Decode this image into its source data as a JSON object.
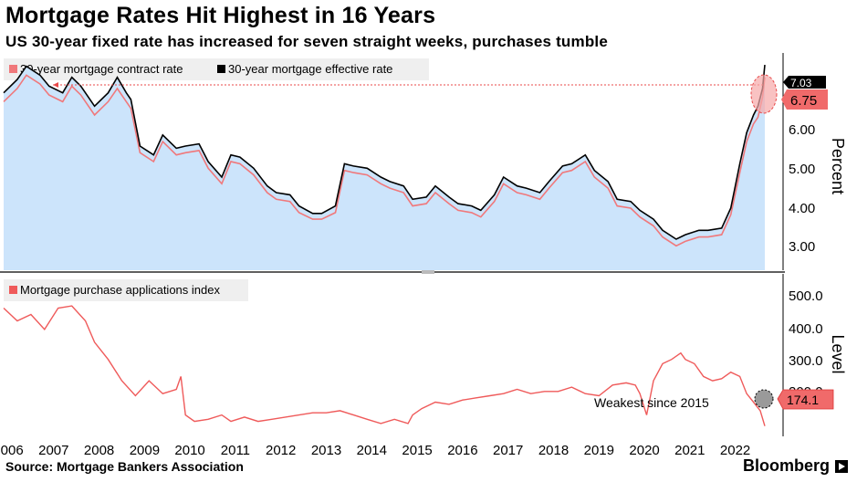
{
  "header": {
    "title": "Mortgage Rates Hit Highest in 16 Years",
    "subtitle": "US 30-year fixed rate has increased for seven straight weeks, purchases tumble"
  },
  "footer": {
    "source": "Source: Mortgage Bankers Association",
    "brand": "Bloomberg"
  },
  "colors": {
    "contract": "#f0787b",
    "effective": "#000000",
    "area": "#cce4fb",
    "index": "#ef5a5a",
    "callout": "#f06a6a"
  },
  "chart_data": [
    {
      "type": "line",
      "ylabel": "Percent",
      "ylim": [
        2.4,
        7.3
      ],
      "yticks": [
        "3.00",
        "4.00",
        "5.00",
        "6.00"
      ],
      "grid": false,
      "legend_position": "top-left",
      "x_range": [
        2006.0,
        2022.75
      ],
      "x_tick_labels": [
        "2006",
        "2007",
        "2008",
        "2009",
        "2010",
        "2011",
        "2012",
        "2013",
        "2014",
        "2015",
        "2016",
        "2017",
        "2018",
        "2019",
        "2020",
        "2021",
        "2022"
      ],
      "series": [
        {
          "name": "30-year mortgage contract rate",
          "x": [
            2006.0,
            2006.3,
            2006.5,
            2006.8,
            2007.0,
            2007.3,
            2007.5,
            2007.7,
            2008.0,
            2008.3,
            2008.5,
            2008.7,
            2008.8,
            2009.0,
            2009.3,
            2009.5,
            2009.8,
            2010.0,
            2010.3,
            2010.5,
            2010.8,
            2011.0,
            2011.2,
            2011.5,
            2011.8,
            2012.0,
            2012.3,
            2012.5,
            2012.8,
            2013.0,
            2013.3,
            2013.5,
            2013.7,
            2014.0,
            2014.3,
            2014.5,
            2014.8,
            2015.0,
            2015.3,
            2015.5,
            2015.8,
            2016.0,
            2016.3,
            2016.5,
            2016.8,
            2017.0,
            2017.3,
            2017.5,
            2017.8,
            2018.0,
            2018.3,
            2018.5,
            2018.8,
            2019.0,
            2019.3,
            2019.5,
            2019.8,
            2020.0,
            2020.3,
            2020.5,
            2020.8,
            2021.0,
            2021.3,
            2021.5,
            2021.8,
            2022.0,
            2022.2,
            2022.35,
            2022.5,
            2022.6,
            2022.7,
            2022.75
          ],
          "values": [
            6.2,
            6.5,
            6.8,
            6.6,
            6.35,
            6.2,
            6.55,
            6.35,
            5.9,
            6.2,
            6.5,
            6.2,
            6.05,
            5.05,
            4.85,
            5.3,
            5.0,
            5.05,
            5.1,
            4.7,
            4.35,
            4.85,
            4.8,
            4.55,
            4.15,
            4.0,
            3.95,
            3.7,
            3.55,
            3.55,
            3.7,
            4.65,
            4.6,
            4.55,
            4.35,
            4.25,
            4.15,
            3.85,
            3.9,
            4.15,
            3.9,
            3.75,
            3.7,
            3.6,
            3.95,
            4.35,
            4.15,
            4.1,
            4.0,
            4.25,
            4.6,
            4.65,
            4.85,
            4.5,
            4.25,
            3.85,
            3.8,
            3.6,
            3.4,
            3.15,
            2.95,
            3.05,
            3.15,
            3.15,
            3.2,
            3.65,
            4.6,
            5.3,
            5.7,
            5.85,
            6.3,
            6.75
          ]
        },
        {
          "name": "30-year mortgage effective rate",
          "x": [
            2006.0,
            2006.3,
            2006.5,
            2006.8,
            2007.0,
            2007.3,
            2007.5,
            2007.7,
            2008.0,
            2008.3,
            2008.5,
            2008.7,
            2008.8,
            2009.0,
            2009.3,
            2009.5,
            2009.8,
            2010.0,
            2010.3,
            2010.5,
            2010.8,
            2011.0,
            2011.2,
            2011.5,
            2011.8,
            2012.0,
            2012.3,
            2012.5,
            2012.8,
            2013.0,
            2013.3,
            2013.5,
            2013.7,
            2014.0,
            2014.3,
            2014.5,
            2014.8,
            2015.0,
            2015.3,
            2015.5,
            2015.8,
            2016.0,
            2016.3,
            2016.5,
            2016.8,
            2017.0,
            2017.3,
            2017.5,
            2017.8,
            2018.0,
            2018.3,
            2018.5,
            2018.8,
            2019.0,
            2019.3,
            2019.5,
            2019.8,
            2020.0,
            2020.3,
            2020.5,
            2020.8,
            2021.0,
            2021.3,
            2021.5,
            2021.8,
            2022.0,
            2022.2,
            2022.35,
            2022.5,
            2022.6,
            2022.7,
            2022.75
          ],
          "values": [
            6.4,
            6.7,
            7.0,
            6.8,
            6.55,
            6.4,
            6.75,
            6.55,
            6.1,
            6.4,
            6.75,
            6.4,
            6.25,
            5.2,
            5.0,
            5.45,
            5.15,
            5.2,
            5.25,
            4.85,
            4.5,
            5.0,
            4.95,
            4.7,
            4.3,
            4.15,
            4.1,
            3.85,
            3.68,
            3.68,
            3.85,
            4.8,
            4.75,
            4.7,
            4.5,
            4.4,
            4.3,
            4.0,
            4.05,
            4.3,
            4.05,
            3.9,
            3.85,
            3.75,
            4.1,
            4.5,
            4.3,
            4.25,
            4.15,
            4.4,
            4.75,
            4.8,
            5.0,
            4.65,
            4.4,
            4.0,
            3.95,
            3.75,
            3.55,
            3.3,
            3.1,
            3.2,
            3.3,
            3.3,
            3.35,
            3.8,
            4.8,
            5.5,
            5.9,
            6.1,
            6.5,
            7.03
          ]
        }
      ],
      "callouts": [
        {
          "series": "30-year mortgage effective rate",
          "value": "7.03"
        },
        {
          "series": "30-year mortgage contract rate",
          "value": "6.75"
        }
      ]
    },
    {
      "type": "line",
      "ylabel": "Level",
      "ylim": [
        150,
        530
      ],
      "yticks": [
        "200.0",
        "300.0",
        "400.0",
        "500.0"
      ],
      "grid": false,
      "legend_position": "top-left",
      "x_range": [
        2006.0,
        2022.75
      ],
      "series": [
        {
          "name": "Mortgage purchase applications index",
          "x": [
            2006.0,
            2006.3,
            2006.6,
            2006.9,
            2007.2,
            2007.5,
            2007.8,
            2008.0,
            2008.3,
            2008.6,
            2008.9,
            2009.2,
            2009.5,
            2009.8,
            2009.9,
            2010.0,
            2010.2,
            2010.5,
            2010.8,
            2011.0,
            2011.3,
            2011.6,
            2011.9,
            2012.2,
            2012.5,
            2012.8,
            2013.1,
            2013.4,
            2013.7,
            2014.0,
            2014.3,
            2014.6,
            2014.9,
            2015.0,
            2015.2,
            2015.5,
            2015.8,
            2016.1,
            2016.4,
            2016.7,
            2017.0,
            2017.3,
            2017.6,
            2017.9,
            2018.2,
            2018.5,
            2018.8,
            2019.1,
            2019.4,
            2019.7,
            2019.9,
            2020.0,
            2020.15,
            2020.3,
            2020.5,
            2020.7,
            2020.9,
            2021.0,
            2021.2,
            2021.4,
            2021.6,
            2021.8,
            2022.0,
            2022.2,
            2022.35,
            2022.5,
            2022.65,
            2022.75
          ],
          "values": [
            450,
            420,
            435,
            400,
            450,
            455,
            420,
            370,
            330,
            280,
            245,
            280,
            250,
            260,
            290,
            200,
            185,
            190,
            200,
            185,
            195,
            185,
            190,
            195,
            200,
            205,
            205,
            210,
            200,
            190,
            180,
            190,
            180,
            200,
            215,
            230,
            225,
            235,
            240,
            245,
            250,
            260,
            250,
            255,
            255,
            265,
            250,
            245,
            270,
            275,
            270,
            250,
            200,
            280,
            320,
            330,
            345,
            330,
            320,
            290,
            280,
            285,
            300,
            290,
            250,
            230,
            210,
            174.1
          ]
        }
      ],
      "annotations": [
        "Weakest since 2015"
      ],
      "callouts": [
        {
          "series": "Mortgage purchase applications index",
          "value": "174.1"
        }
      ]
    }
  ]
}
